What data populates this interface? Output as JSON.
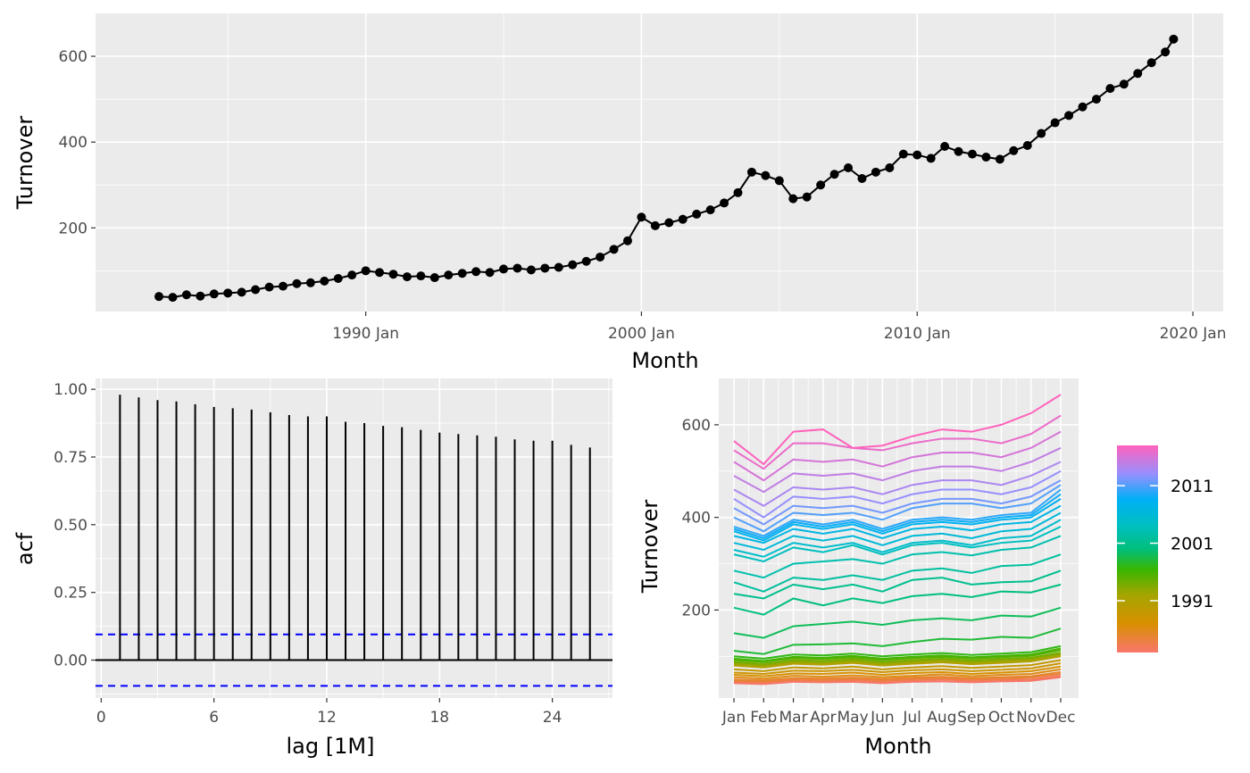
{
  "chart_data": [
    {
      "type": "line",
      "title": "",
      "xlabel": "Month",
      "ylabel": "Turnover",
      "x_tick_labels": [
        "1990 Jan",
        "2000 Jan",
        "2010 Jan",
        "2020 Jan"
      ],
      "y_tick_labels": [
        "200",
        "400",
        "600"
      ],
      "x_ticks": [
        1990,
        2000,
        2010,
        2020
      ],
      "y_ticks": [
        200,
        400,
        600
      ],
      "xlim": [
        1980.2,
        2021.1
      ],
      "ylim": [
        5,
        700
      ],
      "series": [
        {
          "name": "Turnover",
          "points": [
            [
              1982.5,
              40
            ],
            [
              1983.0,
              38
            ],
            [
              1983.5,
              44
            ],
            [
              1984.0,
              41
            ],
            [
              1984.5,
              46
            ],
            [
              1985.0,
              48
            ],
            [
              1985.5,
              50
            ],
            [
              1986.0,
              56
            ],
            [
              1986.5,
              62
            ],
            [
              1987.0,
              64
            ],
            [
              1987.5,
              70
            ],
            [
              1988.0,
              72
            ],
            [
              1988.5,
              76
            ],
            [
              1989.0,
              82
            ],
            [
              1989.5,
              90
            ],
            [
              1990.0,
              100
            ],
            [
              1990.5,
              96
            ],
            [
              1991.0,
              92
            ],
            [
              1991.5,
              86
            ],
            [
              1992.0,
              88
            ],
            [
              1992.5,
              84
            ],
            [
              1993.0,
              90
            ],
            [
              1993.5,
              94
            ],
            [
              1994.0,
              98
            ],
            [
              1994.5,
              96
            ],
            [
              1995.0,
              104
            ],
            [
              1995.5,
              106
            ],
            [
              1996.0,
              102
            ],
            [
              1996.5,
              106
            ],
            [
              1997.0,
              108
            ],
            [
              1997.5,
              114
            ],
            [
              1998.0,
              122
            ],
            [
              1998.5,
              132
            ],
            [
              1999.0,
              150
            ],
            [
              1999.5,
              170
            ],
            [
              2000.0,
              225
            ],
            [
              2000.5,
              205
            ],
            [
              2001.0,
              212
            ],
            [
              2001.5,
              220
            ],
            [
              2002.0,
              232
            ],
            [
              2002.5,
              242
            ],
            [
              2003.0,
              258
            ],
            [
              2003.5,
              282
            ],
            [
              2004.0,
              330
            ],
            [
              2004.5,
              322
            ],
            [
              2005.0,
              310
            ],
            [
              2005.5,
              268
            ],
            [
              2006.0,
              272
            ],
            [
              2006.5,
              300
            ],
            [
              2007.0,
              325
            ],
            [
              2007.5,
              340
            ],
            [
              2008.0,
              315
            ],
            [
              2008.5,
              330
            ],
            [
              2009.0,
              340
            ],
            [
              2009.5,
              372
            ],
            [
              2010.0,
              370
            ],
            [
              2010.5,
              362
            ],
            [
              2011.0,
              390
            ],
            [
              2011.5,
              378
            ],
            [
              2012.0,
              372
            ],
            [
              2012.5,
              365
            ],
            [
              2013.0,
              360
            ],
            [
              2013.5,
              380
            ],
            [
              2014.0,
              392
            ],
            [
              2014.5,
              420
            ],
            [
              2015.0,
              445
            ],
            [
              2015.5,
              462
            ],
            [
              2016.0,
              482
            ],
            [
              2016.5,
              500
            ],
            [
              2017.0,
              525
            ],
            [
              2017.5,
              535
            ],
            [
              2018.0,
              560
            ],
            [
              2018.5,
              585
            ],
            [
              2019.0,
              610
            ],
            [
              2019.3,
              640
            ]
          ]
        }
      ]
    },
    {
      "type": "bar",
      "title": "",
      "xlabel": "lag [1M]",
      "ylabel": "acf",
      "x_tick_labels": [
        "0",
        "6",
        "12",
        "18",
        "24"
      ],
      "y_tick_labels": [
        "0.00",
        "0.25",
        "0.50",
        "0.75",
        "1.00"
      ],
      "x_ticks": [
        0,
        6,
        12,
        18,
        24
      ],
      "y_ticks": [
        0,
        0.25,
        0.5,
        0.75,
        1.0
      ],
      "xlim": [
        -0.3,
        27.2
      ],
      "ylim": [
        -0.14,
        1.04
      ],
      "categories": [
        1,
        2,
        3,
        4,
        5,
        6,
        7,
        8,
        9,
        10,
        11,
        12,
        13,
        14,
        15,
        16,
        17,
        18,
        19,
        20,
        21,
        22,
        23,
        24,
        25,
        26
      ],
      "values": [
        0.98,
        0.97,
        0.96,
        0.955,
        0.945,
        0.935,
        0.93,
        0.925,
        0.915,
        0.905,
        0.9,
        0.9,
        0.88,
        0.875,
        0.865,
        0.86,
        0.85,
        0.84,
        0.835,
        0.83,
        0.825,
        0.815,
        0.81,
        0.81,
        0.795,
        0.785
      ],
      "confidence_band": [
        -0.095,
        0.095
      ]
    },
    {
      "type": "line",
      "title": "",
      "xlabel": "Month",
      "ylabel": "Turnover",
      "categories": [
        "Jan",
        "Feb",
        "Mar",
        "Apr",
        "May",
        "Jun",
        "Jul",
        "Aug",
        "Sep",
        "Oct",
        "Nov",
        "Dec"
      ],
      "y_tick_labels": [
        "200",
        "400",
        "600"
      ],
      "y_ticks": [
        200,
        400,
        600
      ],
      "ylim": [
        10,
        700
      ],
      "legend": {
        "position": "right",
        "labels": [
          "2011",
          "2001",
          "1991"
        ],
        "label_years": [
          2011,
          2001,
          1991
        ],
        "year_range": [
          1982,
          2018
        ]
      },
      "series": [
        {
          "year": 1982,
          "values": [
            42,
            40,
            45,
            44,
            45,
            42,
            45,
            46,
            44,
            46,
            47,
            55
          ]
        },
        {
          "year": 1983,
          "values": [
            45,
            43,
            48,
            46,
            48,
            45,
            48,
            50,
            47,
            49,
            50,
            58
          ]
        },
        {
          "year": 1984,
          "values": [
            47,
            45,
            50,
            49,
            51,
            48,
            51,
            53,
            50,
            52,
            54,
            62
          ]
        },
        {
          "year": 1985,
          "values": [
            50,
            48,
            53,
            52,
            54,
            51,
            54,
            56,
            53,
            55,
            57,
            66
          ]
        },
        {
          "year": 1986,
          "values": [
            55,
            52,
            58,
            56,
            59,
            55,
            58,
            61,
            57,
            60,
            62,
            72
          ]
        },
        {
          "year": 1987,
          "values": [
            60,
            57,
            63,
            62,
            65,
            60,
            64,
            66,
            62,
            65,
            68,
            78
          ]
        },
        {
          "year": 1988,
          "values": [
            65,
            62,
            69,
            68,
            71,
            66,
            70,
            72,
            68,
            71,
            74,
            85
          ]
        },
        {
          "year": 1989,
          "values": [
            72,
            68,
            76,
            74,
            78,
            72,
            76,
            79,
            75,
            78,
            81,
            92
          ]
        },
        {
          "year": 1990,
          "values": [
            80,
            76,
            84,
            82,
            86,
            80,
            84,
            87,
            83,
            86,
            89,
            100
          ]
        },
        {
          "year": 1991,
          "values": [
            84,
            80,
            88,
            86,
            90,
            84,
            88,
            91,
            86,
            89,
            92,
            104
          ]
        },
        {
          "year": 1992,
          "values": [
            82,
            78,
            86,
            84,
            88,
            82,
            86,
            89,
            85,
            88,
            90,
            102
          ]
        },
        {
          "year": 1993,
          "values": [
            86,
            82,
            90,
            88,
            92,
            86,
            90,
            93,
            89,
            92,
            95,
            106
          ]
        },
        {
          "year": 1994,
          "values": [
            88,
            84,
            92,
            90,
            94,
            88,
            92,
            95,
            91,
            94,
            97,
            108
          ]
        },
        {
          "year": 1995,
          "values": [
            92,
            88,
            96,
            94,
            98,
            92,
            96,
            99,
            95,
            98,
            101,
            113
          ]
        },
        {
          "year": 1996,
          "values": [
            95,
            90,
            99,
            97,
            101,
            95,
            99,
            102,
            98,
            101,
            104,
            117
          ]
        },
        {
          "year": 1997,
          "values": [
            100,
            95,
            104,
            102,
            106,
            100,
            104,
            107,
            103,
            106,
            109,
            122
          ]
        },
        {
          "year": 1998,
          "values": [
            112,
            105,
            125,
            126,
            128,
            122,
            131,
            138,
            136,
            142,
            140,
            160
          ]
        },
        {
          "year": 1999,
          "values": [
            150,
            140,
            165,
            170,
            175,
            168,
            178,
            182,
            178,
            188,
            186,
            205
          ]
        },
        {
          "year": 2000,
          "values": [
            205,
            190,
            225,
            210,
            225,
            215,
            230,
            235,
            228,
            240,
            238,
            255
          ]
        },
        {
          "year": 2001,
          "values": [
            235,
            225,
            255,
            245,
            255,
            240,
            265,
            270,
            255,
            260,
            262,
            285
          ]
        },
        {
          "year": 2002,
          "values": [
            260,
            240,
            270,
            265,
            275,
            265,
            285,
            290,
            280,
            295,
            298,
            320
          ]
        },
        {
          "year": 2003,
          "values": [
            285,
            270,
            300,
            305,
            310,
            300,
            320,
            325,
            318,
            330,
            335,
            360
          ]
        },
        {
          "year": 2004,
          "values": [
            320,
            305,
            335,
            325,
            340,
            320,
            340,
            345,
            335,
            345,
            350,
            380
          ]
        },
        {
          "year": 2005,
          "values": [
            330,
            315,
            345,
            335,
            345,
            325,
            345,
            350,
            340,
            355,
            360,
            395
          ]
        },
        {
          "year": 2006,
          "values": [
            345,
            330,
            360,
            350,
            360,
            340,
            360,
            365,
            355,
            370,
            375,
            410
          ]
        },
        {
          "year": 2007,
          "values": [
            360,
            345,
            375,
            365,
            375,
            355,
            375,
            380,
            372,
            385,
            390,
            425
          ]
        },
        {
          "year": 2008,
          "values": [
            370,
            350,
            385,
            375,
            385,
            365,
            385,
            390,
            385,
            395,
            400,
            440
          ]
        },
        {
          "year": 2009,
          "values": [
            375,
            355,
            390,
            380,
            390,
            370,
            390,
            395,
            390,
            400,
            405,
            450
          ]
        },
        {
          "year": 2010,
          "values": [
            380,
            360,
            395,
            385,
            395,
            375,
            395,
            400,
            395,
            405,
            410,
            460
          ]
        },
        {
          "year": 2011,
          "values": [
            400,
            370,
            410,
            405,
            410,
            395,
            420,
            430,
            430,
            420,
            430,
            470
          ]
        },
        {
          "year": 2012,
          "values": [
            420,
            385,
            425,
            420,
            425,
            410,
            430,
            440,
            440,
            430,
            445,
            480
          ]
        },
        {
          "year": 2013,
          "values": [
            440,
            400,
            445,
            440,
            445,
            430,
            450,
            460,
            460,
            450,
            465,
            500
          ]
        },
        {
          "year": 2014,
          "values": [
            460,
            425,
            465,
            460,
            465,
            450,
            470,
            480,
            480,
            470,
            490,
            520
          ]
        },
        {
          "year": 2015,
          "values": [
            490,
            455,
            495,
            490,
            495,
            480,
            500,
            510,
            510,
            500,
            520,
            550
          ]
        },
        {
          "year": 2016,
          "values": [
            520,
            480,
            525,
            520,
            525,
            510,
            530,
            540,
            540,
            530,
            550,
            585
          ]
        },
        {
          "year": 2017,
          "values": [
            545,
            505,
            560,
            560,
            550,
            545,
            560,
            570,
            570,
            560,
            580,
            620
          ]
        },
        {
          "year": 2018,
          "values": [
            565,
            515,
            585,
            590,
            550,
            555,
            575,
            590,
            585,
            600,
            625,
            665
          ]
        }
      ]
    }
  ]
}
